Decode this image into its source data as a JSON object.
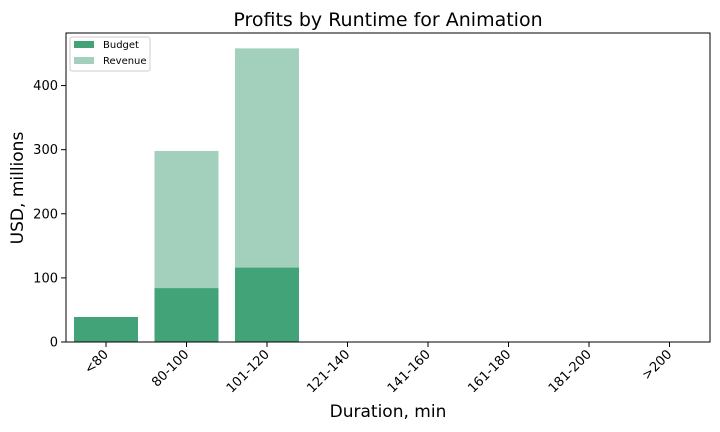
{
  "chart_data": {
    "type": "bar",
    "title": "Profits by Runtime for Animation",
    "xlabel": "Duration, min",
    "ylabel": "USD, millions",
    "categories": [
      "<80",
      "80-100",
      "101-120",
      "121-140",
      "141-160",
      "161-180",
      "181-200",
      ">200"
    ],
    "series": [
      {
        "name": "Revenue",
        "values": [
          0,
          298,
          458,
          0,
          0,
          0,
          0,
          0
        ],
        "color": "#a3d0bc"
      },
      {
        "name": "Budget",
        "values": [
          39,
          84,
          116,
          0,
          0,
          0,
          0,
          0
        ],
        "color": "#43a378"
      }
    ],
    "yticks": [
      0,
      100,
      200,
      300,
      400
    ],
    "ylim": [
      0,
      482
    ],
    "grid": false,
    "legend_position": "top-left",
    "legend_order": [
      "Budget",
      "Revenue"
    ]
  }
}
